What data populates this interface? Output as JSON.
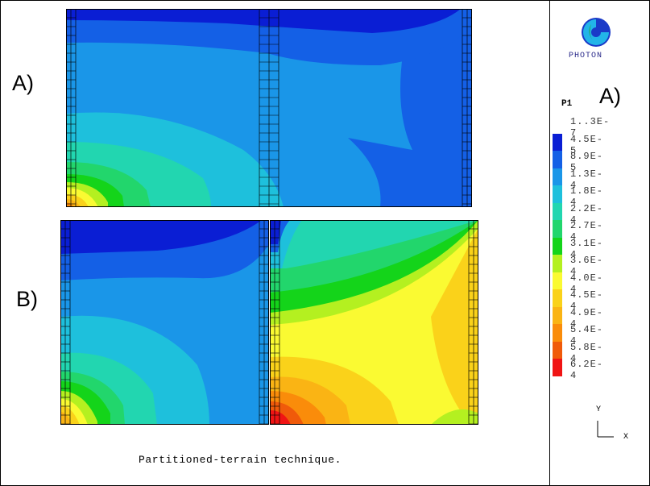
{
  "figure": {
    "panel_a_label": "A)",
    "panel_b_label": "B)",
    "caption": "Partitioned-terrain technique.",
    "logo_text": "PHOTON"
  },
  "legend": {
    "variable": "P1",
    "panel": "A)",
    "levels": [
      {
        "label": "1..3E-7",
        "color": "#ffffff"
      },
      {
        "label": "4.5E-5",
        "color": "#0a1ed4"
      },
      {
        "label": "8.9E-5",
        "color": "#1460e6"
      },
      {
        "label": "1.3E-4",
        "color": "#1a96e8"
      },
      {
        "label": "1.8E-4",
        "color": "#1ec0dc"
      },
      {
        "label": "2.2E-4",
        "color": "#22d6b0"
      },
      {
        "label": "2.7E-4",
        "color": "#22d66c"
      },
      {
        "label": "3.1E-4",
        "color": "#14d41a"
      },
      {
        "label": "3.6E-4",
        "color": "#b4f020"
      },
      {
        "label": "4.0E-4",
        "color": "#fafa32"
      },
      {
        "label": "4.5E-4",
        "color": "#fad21a"
      },
      {
        "label": "4.9E-4",
        "color": "#fab414"
      },
      {
        "label": "5.4E-4",
        "color": "#fa8c0a"
      },
      {
        "label": "5.8E-4",
        "color": "#f05a0a"
      },
      {
        "label": "6.2E-4",
        "color": "#f01414"
      }
    ]
  },
  "axes": {
    "x_label": "X",
    "y_label": "Y"
  }
}
